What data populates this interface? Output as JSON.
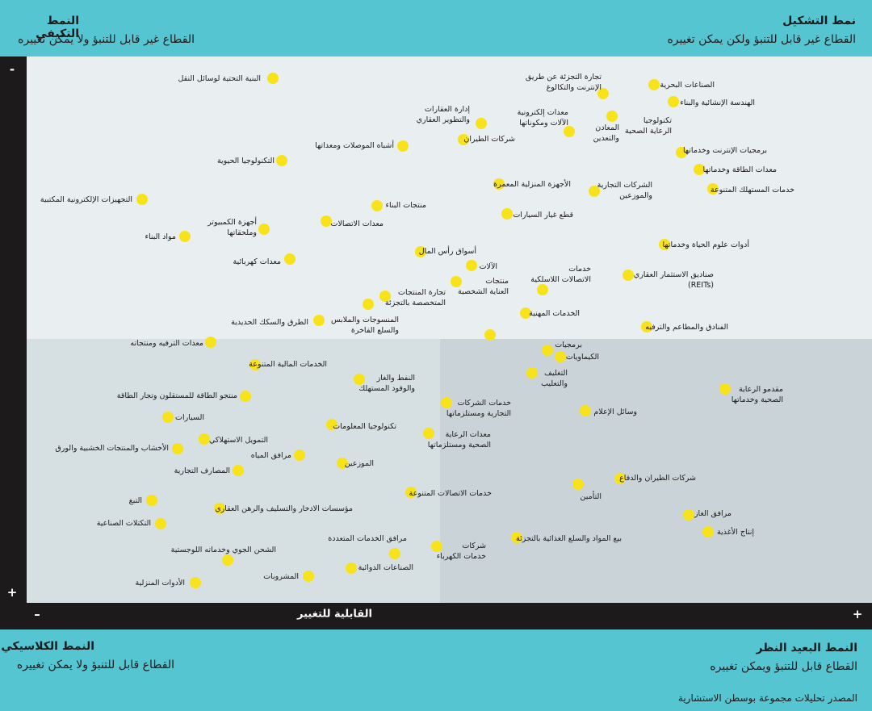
{
  "quadrants": {
    "top_right": {
      "title": "نمط التشكيل",
      "subtitle": "القطاع غير قابل للتنبؤ ولكن يمكن تغييره"
    },
    "top_left": {
      "title": "النمط التكيفي",
      "subtitle": "القطاع غير قابل للتنبؤ ولا يمكن تغييره"
    },
    "bottom_left": {
      "title": "النمط الكلاسيكي",
      "subtitle": "القطاع قابل للتنبؤ ولا يمكن تغييره"
    },
    "bottom_right": {
      "title": "النمط البعيد النظر",
      "subtitle": "القطاع قابل للتنبؤ ويمكن تغييره"
    }
  },
  "axes": {
    "x_label": "القابلية للتغيير",
    "x_min": "–",
    "x_max": "+",
    "y_min": "-",
    "y_max": "+"
  },
  "source": "المصدر تحليلات مجموعة بوسطن الاستشارية",
  "sectors": [
    "البنية التحتية لوسائل النقل",
    "تجارة التجزئة عن طريق\nالإنترنت والتكالوغ",
    "الصناعات البحرية",
    "الهندسة الإنشائية والبناء",
    "إدارة العقارات\nوالتطوير العقاري",
    "معدات إلكترونية\nالآلات ومكوناتها",
    "تكنولوجيا\nالرعاية الصحية",
    "المعادن\nوالتعدين",
    "شركات الطيران",
    "أشباه الموصلات ومعداتها",
    "برمجيات الإنترنت وخدماتها",
    "التكنولوجيا الحيوية",
    "معدات الطاقة وخدماتها",
    "الأجهزة المنزلية المعمرة",
    "الشركات التجارية\nوالموزعين",
    "خدمات المستهلك المتنوعة",
    "التجهيزات الإلكترونية المكتبية",
    "منتجات البناء",
    "قطع غيار السيارات",
    "أجهزة الكمبيوتر\nوملحقاتها",
    "معدات الاتصالات",
    "مواد البناء",
    "أدوات علوم الحياة وخدماتها",
    "أسواق رأس المال",
    "معدات كهربائية",
    "الآلات",
    "خدمات\nالاتصالات اللاسلكية",
    "صناديق الاستثمار العقاري\n(REITs)",
    "منتجات\nالعناية الشخصية",
    "تجارة المنتجات\nالمتخصصة بالتجزئة",
    "الخدمات المهنية",
    "الطرق والسكك الحديدية",
    "المنسوجات والملابس\nوالسلع الفاخرة",
    "الفنادق والمطاعم والترفيه",
    "معدات الترفيه ومنتجاته",
    "برمجيات",
    "الكيماويات",
    "الخدمات المالية المتنوعة",
    "النفط والغاز\nوالوقود المستهلك",
    "التغليف\nوالتعليب",
    "مقدمو الرعاية\nالصحية وخدماتها",
    "منتجو الطاقة للمستقلون وتجار الطاقة",
    "خدمات الشركات\nالتجارية ومستلزماتها",
    "وسائل الإعلام",
    "السيارات",
    "تكنولوجيا المعلومات",
    "معدات الرعاية\nالصحية ومستلزماتها",
    "التمويل الاستهلاكي",
    "الأخشاب والمنتجات الخشبية والورق",
    "مرافق المياه",
    "الموزعين",
    "المصارف التجارية",
    "شركات الطيران والدفاع",
    "خدمات الاتصالات المتنوعة",
    "التأمين",
    "التبغ",
    "مؤسسات الادخار والتسليف والرهن العقاري",
    "مرافق الغاز",
    "التكتلات الصناعية",
    "إنتاج الأغذية",
    "بيع المواد والسلع الغذائية بالتجزئة",
    "مرافق الخدمات المتعددة",
    "شركات\nخدمات الكهرباء",
    "الشحن الجوي وخدماته اللوجستية",
    "الصناعات الدوائية",
    "المشروبات",
    "الأدوات المنزلية"
  ]
}
